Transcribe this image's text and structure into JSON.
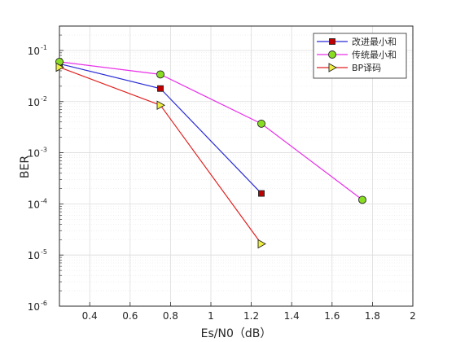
{
  "chart_data": {
    "type": "line",
    "xlabel": "Es/N0（dB）",
    "ylabel": "BER",
    "xlim": [
      0.25,
      2
    ],
    "ylim": [
      1e-06,
      0.3
    ],
    "yscale": "log",
    "grid": true,
    "minor_grid": true,
    "legend_position": "top-right",
    "x_ticks": [
      {
        "value": 0.4,
        "label": "0.4"
      },
      {
        "value": 0.6,
        "label": "0.6"
      },
      {
        "value": 0.8,
        "label": "0.8"
      },
      {
        "value": 1.0,
        "label": "1"
      },
      {
        "value": 1.2,
        "label": "1.2"
      },
      {
        "value": 1.4,
        "label": "1.4"
      },
      {
        "value": 1.6,
        "label": "1.6"
      },
      {
        "value": 1.8,
        "label": "1.8"
      },
      {
        "value": 2.0,
        "label": "2"
      }
    ],
    "y_ticks": [
      {
        "value": 0.1,
        "base": "10",
        "exp": "-1"
      },
      {
        "value": 0.01,
        "base": "10",
        "exp": "-2"
      },
      {
        "value": 0.001,
        "base": "10",
        "exp": "-3"
      },
      {
        "value": 0.0001,
        "base": "10",
        "exp": "-4"
      },
      {
        "value": 1e-05,
        "base": "10",
        "exp": "-5"
      },
      {
        "value": 1e-06,
        "base": "10",
        "exp": "-6"
      }
    ],
    "series": [
      {
        "name": "改进最小和",
        "color": "#2b2bd6",
        "marker": "square",
        "marker_color": "#c00000",
        "x": [
          0.25,
          0.75,
          1.25
        ],
        "y": [
          0.055,
          0.018,
          0.00016
        ]
      },
      {
        "name": "传统最小和",
        "color": "#e830e8",
        "marker": "circle",
        "marker_color": "#88dd22",
        "x": [
          0.25,
          0.75,
          1.25,
          1.75
        ],
        "y": [
          0.06,
          0.034,
          0.0037,
          0.00012
        ]
      },
      {
        "name": "BP译码",
        "color": "#e02020",
        "marker": "triangle-right",
        "marker_color": "#eeee44",
        "x": [
          0.25,
          0.75,
          1.25
        ],
        "y": [
          0.047,
          0.0085,
          1.65e-05
        ]
      }
    ]
  }
}
